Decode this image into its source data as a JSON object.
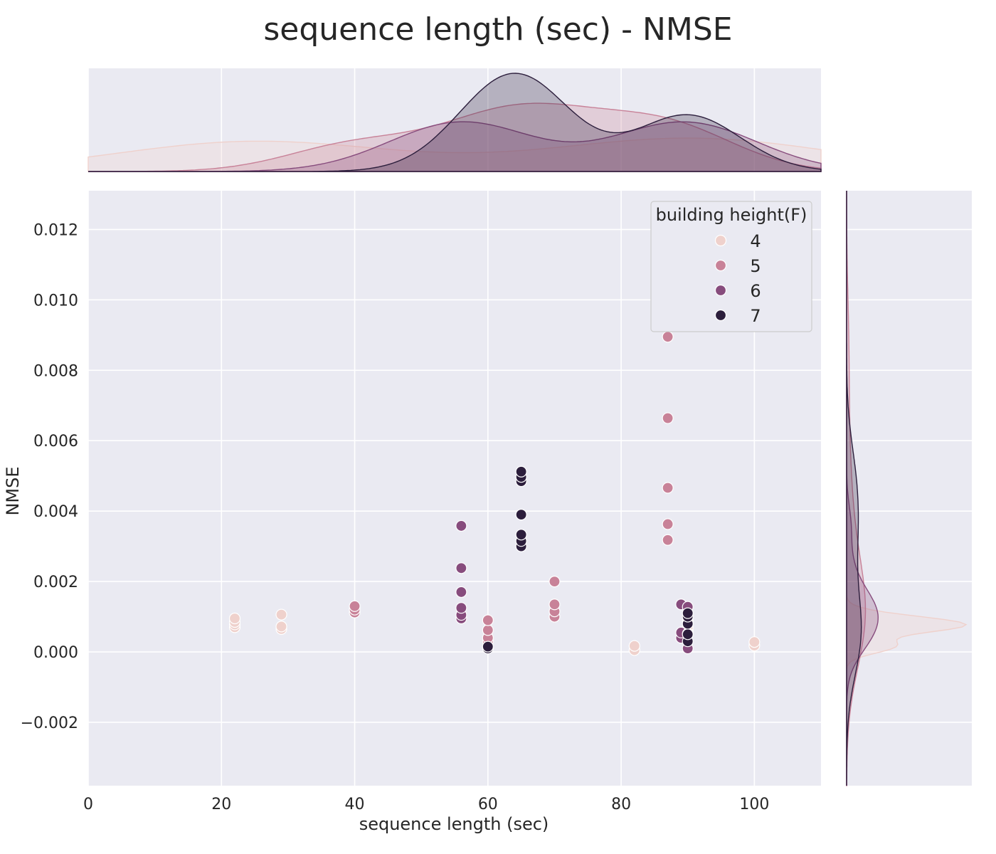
{
  "chart_data": {
    "type": "scatter",
    "title": "sequence length (sec) - NMSE",
    "xlabel": "sequence length (sec)",
    "ylabel": "NMSE",
    "xlim": [
      0,
      110
    ],
    "ylim": [
      -0.0038,
      0.0131
    ],
    "x_ticks": [
      "0",
      "20",
      "40",
      "60",
      "80",
      "100"
    ],
    "y_ticks": [
      "−0.002",
      "0.000",
      "0.002",
      "0.004",
      "0.006",
      "0.008",
      "0.010",
      "0.012"
    ],
    "grid": true,
    "legend": {
      "title": "building height(F)",
      "placement": "top-right",
      "entries": [
        "4",
        "5",
        "6",
        "7"
      ]
    },
    "marginals": "kde",
    "colors": {
      "4": "#efd1cc",
      "5": "#c88298",
      "6": "#874c7d",
      "7": "#2c1e3c"
    },
    "series": [
      {
        "name": "4",
        "points": [
          [
            22,
            0.0007
          ],
          [
            22,
            0.00078
          ],
          [
            22,
            0.00085
          ],
          [
            22,
            0.00095
          ],
          [
            29,
            0.00065
          ],
          [
            29,
            0.00072
          ],
          [
            29,
            0.00106
          ],
          [
            82,
            5e-05
          ],
          [
            82,
            0.00017
          ],
          [
            90,
            0.0006
          ],
          [
            90,
            0.0007
          ],
          [
            90,
            0.0008
          ],
          [
            90,
            0.00088
          ],
          [
            100,
            0.00018
          ],
          [
            100,
            0.00028
          ]
        ]
      },
      {
        "name": "5",
        "points": [
          [
            40,
            0.00112
          ],
          [
            40,
            0.0012
          ],
          [
            40,
            0.0013
          ],
          [
            60,
            0.0003
          ],
          [
            60,
            0.0004
          ],
          [
            60,
            0.00062
          ],
          [
            60,
            0.0009
          ],
          [
            70,
            0.001
          ],
          [
            70,
            0.00115
          ],
          [
            70,
            0.00135
          ],
          [
            70,
            0.002
          ],
          [
            87,
            0.00318
          ],
          [
            87,
            0.00363
          ],
          [
            87,
            0.00466
          ],
          [
            87,
            0.00664
          ],
          [
            87,
            0.00895
          ]
        ]
      },
      {
        "name": "6",
        "points": [
          [
            56,
            0.00095
          ],
          [
            56,
            0.00105
          ],
          [
            56,
            0.00125
          ],
          [
            56,
            0.0017
          ],
          [
            56,
            0.00238
          ],
          [
            56,
            0.00358
          ],
          [
            89,
            0.0004
          ],
          [
            89,
            0.00055
          ],
          [
            89,
            0.00135
          ],
          [
            90,
            0.0001
          ],
          [
            90,
            0.00052
          ],
          [
            90,
            0.00128
          ]
        ]
      },
      {
        "name": "7",
        "points": [
          [
            60,
            0.0001
          ],
          [
            60,
            0.00015
          ],
          [
            65,
            0.003
          ],
          [
            65,
            0.00315
          ],
          [
            65,
            0.00333
          ],
          [
            65,
            0.0039
          ],
          [
            65,
            0.00485
          ],
          [
            65,
            0.00497
          ],
          [
            65,
            0.00512
          ],
          [
            90,
            0.0003
          ],
          [
            90,
            0.0005
          ],
          [
            90,
            0.0008
          ],
          [
            90,
            0.001
          ],
          [
            90,
            0.0011
          ]
        ]
      }
    ]
  }
}
